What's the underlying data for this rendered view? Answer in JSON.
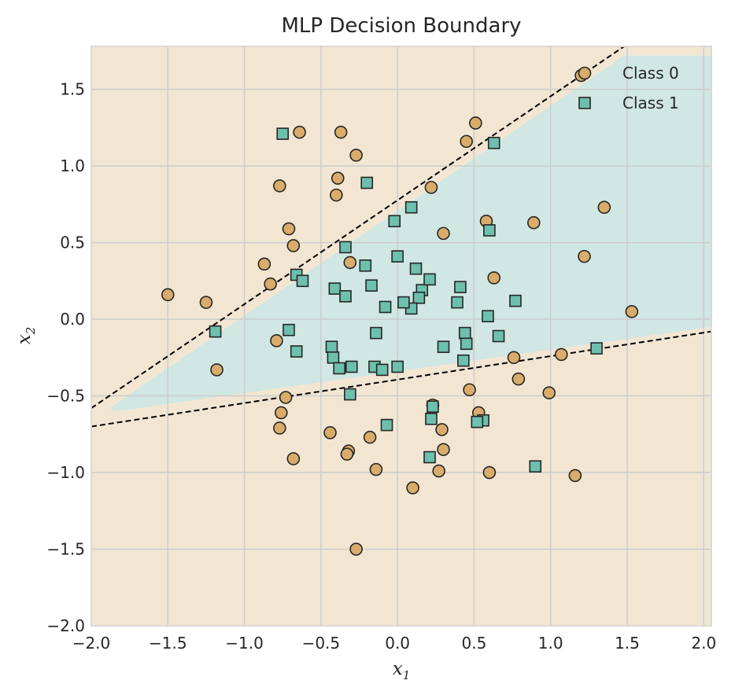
{
  "chart_data": {
    "type": "scatter",
    "title": "MLP Decision Boundary",
    "xlabel": "x",
    "xlabel_sub": "1",
    "ylabel": "x",
    "ylabel_sub": "2",
    "xlim": [
      -2.0,
      2.05
    ],
    "ylim": [
      -2.0,
      1.78
    ],
    "xticks": [
      -2.0,
      -1.5,
      -1.0,
      -0.5,
      0.0,
      0.5,
      1.0,
      1.5,
      2.0
    ],
    "xtick_labels": [
      "−2.0",
      "−1.5",
      "−1.0",
      "−0.5",
      "0.0",
      "0.5",
      "1.0",
      "1.5",
      "2.0"
    ],
    "yticks": [
      -2.0,
      -1.5,
      -1.0,
      -0.5,
      0.0,
      0.5,
      1.0,
      1.5
    ],
    "ytick_labels": [
      "−2.0",
      "−1.5",
      "−1.0",
      "−0.5",
      "0.0",
      "0.5",
      "1.0",
      "1.5"
    ],
    "grid": true,
    "legend_position": "top-right",
    "colors": {
      "class0_bg": "#f2e6d3",
      "class1_bg": "#d0e7e3",
      "class0_point": "#d9ac6b",
      "class1_point": "#6dbfae",
      "edge": "#262626",
      "grid": "#cccccc"
    },
    "boundary_lines": [
      {
        "name": "upper",
        "x": [
          -2.0,
          1.48
        ],
        "y": [
          -0.58,
          1.78
        ]
      },
      {
        "name": "lower",
        "x": [
          -2.0,
          2.05
        ],
        "y": [
          -0.7,
          -0.08
        ]
      }
    ],
    "class1_region": {
      "x": [
        -1.88,
        1.48,
        2.05,
        2.05,
        -1.84
      ],
      "y": [
        -0.58,
        1.72,
        1.72,
        -0.05,
        -0.6
      ]
    },
    "series": [
      {
        "name": "Class 0",
        "marker": "circle",
        "x": [
          1.2,
          0.51,
          0.45,
          -0.64,
          -0.37,
          -0.27,
          -0.39,
          -0.77,
          0.22,
          -0.4,
          -0.71,
          0.58,
          0.3,
          0.89,
          1.35,
          -0.68,
          1.22,
          -0.87,
          -0.31,
          0.63,
          -0.83,
          -1.5,
          -1.25,
          1.53,
          -0.79,
          1.07,
          0.76,
          -1.18,
          0.47,
          0.79,
          -0.73,
          0.99,
          0.23,
          0.53,
          -0.76,
          0.29,
          -0.77,
          -0.44,
          -0.18,
          -0.68,
          0.3,
          -0.32,
          -0.33,
          -0.14,
          0.27,
          0.6,
          1.16,
          0.1,
          -0.27
        ],
        "y": [
          1.59,
          1.28,
          1.16,
          1.22,
          1.22,
          1.07,
          0.92,
          0.87,
          0.86,
          0.81,
          0.59,
          0.64,
          0.56,
          0.63,
          0.73,
          0.48,
          0.41,
          0.36,
          0.37,
          0.27,
          0.23,
          0.16,
          0.11,
          0.05,
          -0.14,
          -0.23,
          -0.25,
          -0.33,
          -0.46,
          -0.39,
          -0.51,
          -0.48,
          -0.56,
          -0.61,
          -0.61,
          -0.72,
          -0.71,
          -0.74,
          -0.77,
          -0.91,
          -0.85,
          -0.86,
          -0.88,
          -0.98,
          -0.99,
          -1.0,
          -1.02,
          -1.1,
          -1.5
        ]
      },
      {
        "name": "Class 1",
        "marker": "square",
        "x": [
          -0.75,
          0.63,
          -0.2,
          0.09,
          -0.02,
          0.6,
          -0.34,
          0.0,
          0.12,
          -0.21,
          -0.66,
          -0.62,
          -0.17,
          0.16,
          0.21,
          -0.41,
          0.41,
          -0.34,
          0.14,
          0.77,
          -0.08,
          0.09,
          0.04,
          0.39,
          0.59,
          -1.19,
          -0.71,
          0.44,
          0.66,
          -0.14,
          0.45,
          0.3,
          1.3,
          -0.43,
          -0.66,
          -0.42,
          0.43,
          -0.15,
          -0.38,
          -0.3,
          -0.1,
          0.0,
          -0.31,
          0.23,
          0.22,
          0.56,
          0.52,
          -0.07,
          0.21,
          0.9
        ],
        "y": [
          1.21,
          1.15,
          0.89,
          0.73,
          0.64,
          0.58,
          0.47,
          0.41,
          0.33,
          0.35,
          0.29,
          0.25,
          0.22,
          0.19,
          0.26,
          0.2,
          0.21,
          0.15,
          0.14,
          0.12,
          0.08,
          0.07,
          0.11,
          0.11,
          0.02,
          -0.08,
          -0.07,
          -0.09,
          -0.11,
          -0.09,
          -0.16,
          -0.18,
          -0.19,
          -0.18,
          -0.21,
          -0.25,
          -0.27,
          -0.31,
          -0.32,
          -0.31,
          -0.33,
          -0.31,
          -0.49,
          -0.57,
          -0.65,
          -0.66,
          -0.67,
          -0.69,
          -0.9,
          -0.96
        ]
      }
    ]
  }
}
